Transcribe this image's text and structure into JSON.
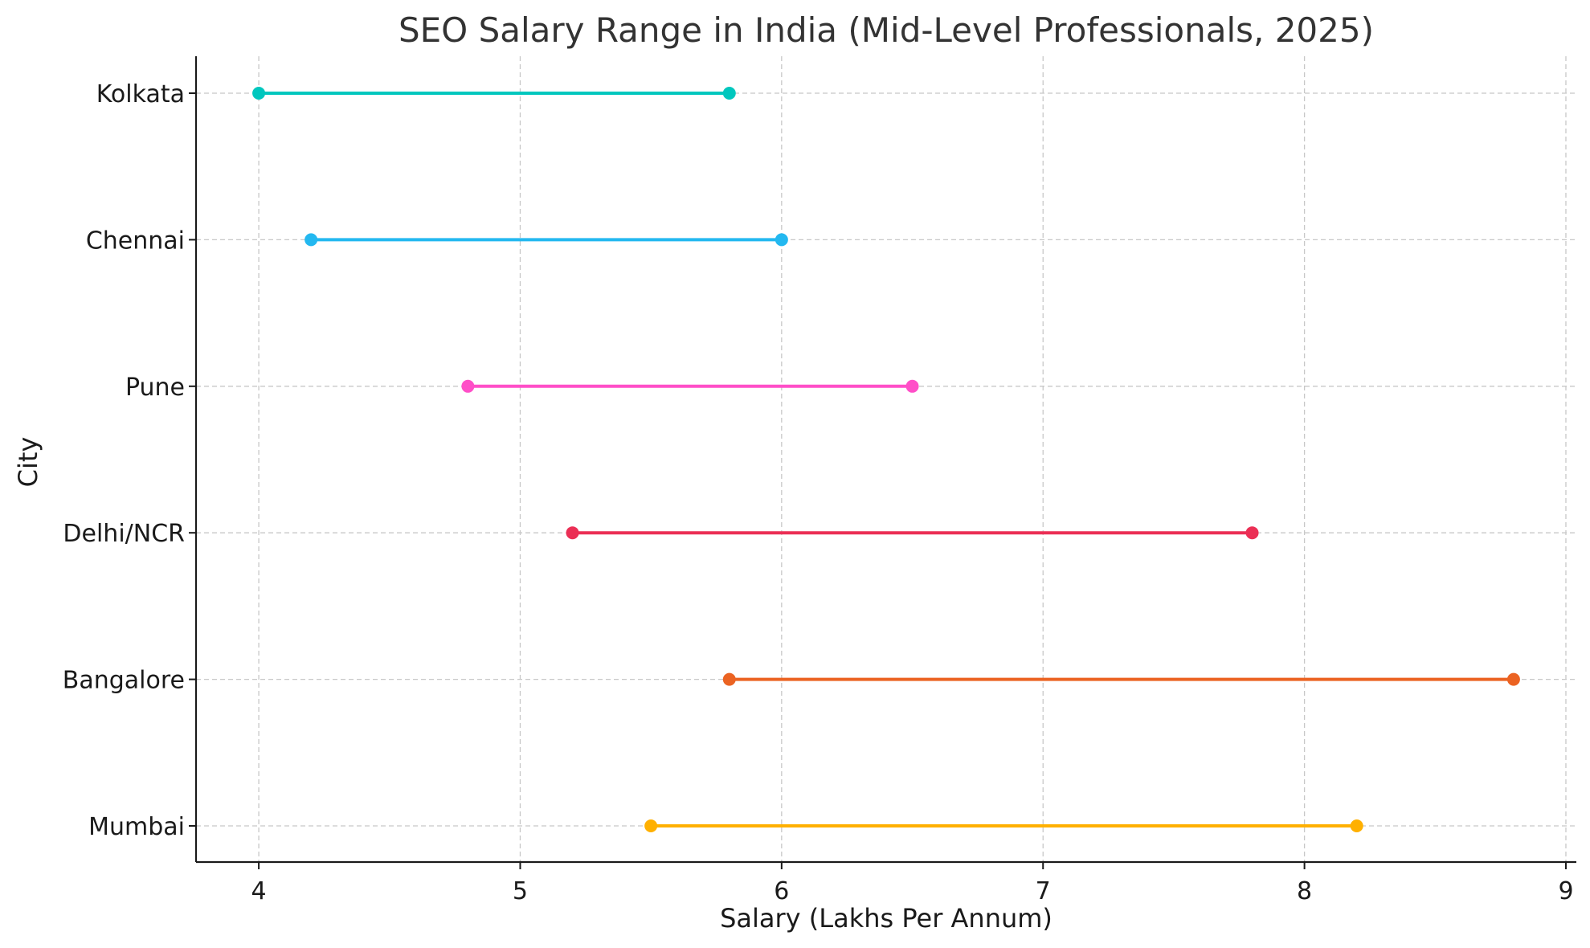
{
  "chart_data": {
    "type": "dumbbell",
    "title": "SEO Salary Range in India (Mid-Level Professionals, 2025)",
    "xlabel": "Salary (Lakhs Per Annum)",
    "ylabel": "City",
    "xlim": [
      3.76,
      9.04
    ],
    "xticks": [
      "4",
      "5",
      "6",
      "7",
      "8",
      "9"
    ],
    "grid": true,
    "categories": [
      "Mumbai",
      "Bangalore",
      "Delhi/NCR",
      "Pune",
      "Chennai",
      "Kolkata"
    ],
    "series": [
      {
        "category": "Mumbai",
        "min": 5.5,
        "max": 8.2,
        "color": "#FFB000"
      },
      {
        "category": "Bangalore",
        "min": 5.8,
        "max": 8.8,
        "color": "#EB6322"
      },
      {
        "category": "Delhi/NCR",
        "min": 5.2,
        "max": 7.8,
        "color": "#EB2F55"
      },
      {
        "category": "Pune",
        "min": 4.8,
        "max": 6.5,
        "color": "#FF4FC8"
      },
      {
        "category": "Chennai",
        "min": 4.2,
        "max": 6.0,
        "color": "#23B8F0"
      },
      {
        "category": "Kolkata",
        "min": 4.0,
        "max": 5.8,
        "color": "#00C7BE"
      }
    ]
  }
}
